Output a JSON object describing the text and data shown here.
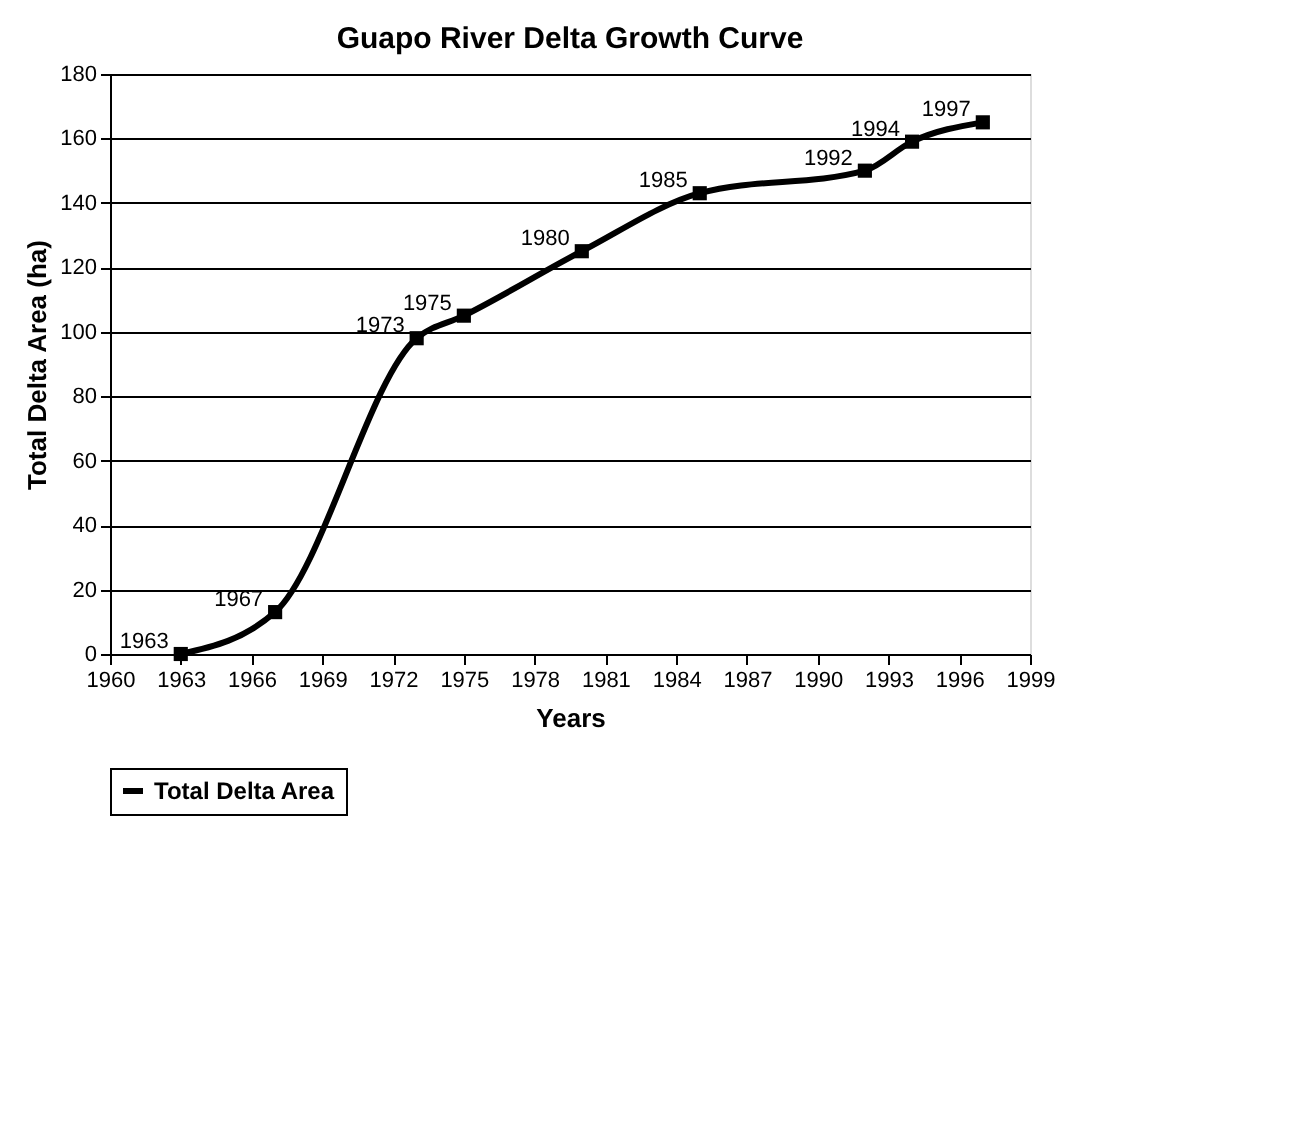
{
  "chart_data": {
    "type": "line",
    "title": "Guapo River Delta Growth Curve",
    "xlabel": "Years",
    "ylabel": "Total Delta Area (ha)",
    "x": [
      1963,
      1967,
      1973,
      1975,
      1980,
      1985,
      1992,
      1994,
      1997
    ],
    "series": [
      {
        "name": "Total Delta Area",
        "color": "#000000",
        "values": [
          0,
          13,
          98,
          105,
          125,
          143,
          150,
          159,
          165
        ]
      }
    ],
    "annotations": [
      {
        "text": "1963",
        "x": 1963,
        "y": 0
      },
      {
        "text": "1967",
        "x": 1967,
        "y": 13
      },
      {
        "text": "1973",
        "x": 1973,
        "y": 98
      },
      {
        "text": "1975",
        "x": 1975,
        "y": 105
      },
      {
        "text": "1980",
        "x": 1980,
        "y": 125
      },
      {
        "text": "1985",
        "x": 1985,
        "y": 143
      },
      {
        "text": "1992",
        "x": 1992,
        "y": 150
      },
      {
        "text": "1994",
        "x": 1994,
        "y": 159
      },
      {
        "text": "1997",
        "x": 1997,
        "y": 165
      }
    ],
    "xlim": [
      1960,
      1999
    ],
    "xticks": [
      1960,
      1963,
      1966,
      1969,
      1972,
      1975,
      1978,
      1981,
      1984,
      1987,
      1990,
      1993,
      1996,
      1999
    ],
    "ylim": [
      0,
      180
    ],
    "yticks": [
      0,
      20,
      40,
      60,
      80,
      100,
      120,
      140,
      160,
      180
    ],
    "grid": "y",
    "legend": "bottom",
    "marker": "square",
    "line_style": "solid"
  }
}
